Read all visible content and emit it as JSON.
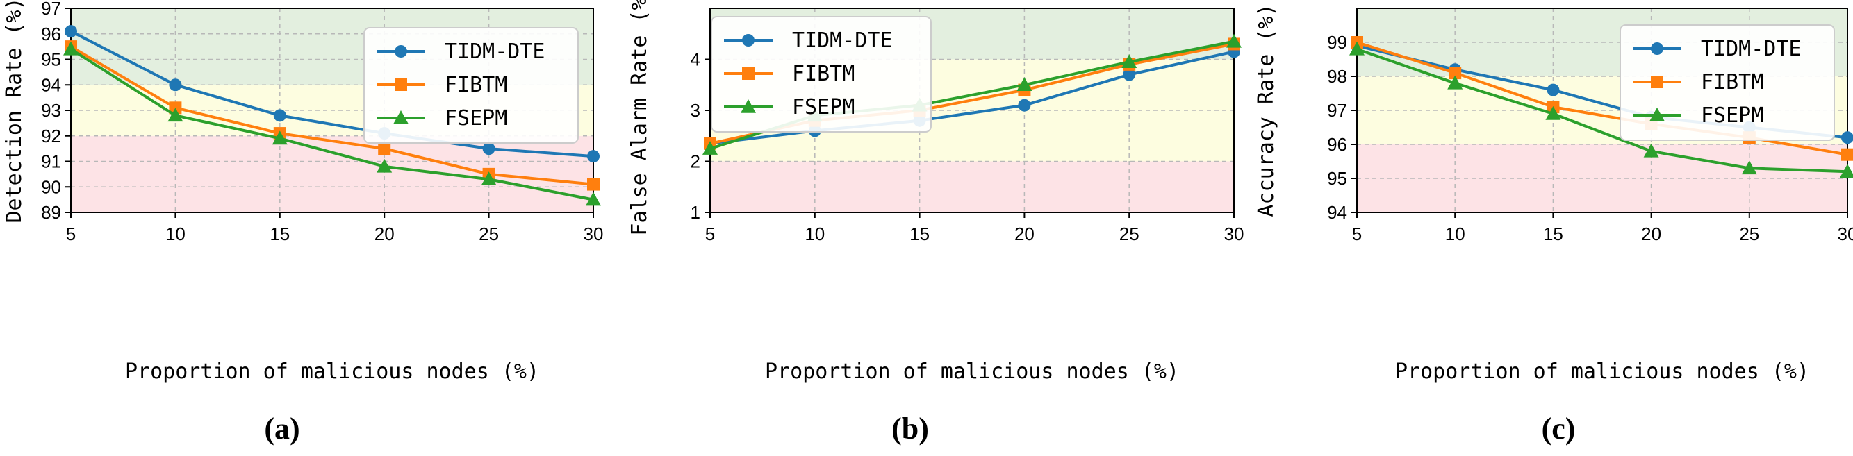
{
  "colors": {
    "band_green": "#e3efdf",
    "band_yellow": "#fdfde0",
    "band_red": "#fde3e6",
    "grid": "#b8b8b8"
  },
  "chart_data": [
    {
      "type": "line",
      "panel_label": "(a)",
      "xlabel": "Proportion of malicious nodes (%)",
      "ylabel": "Detection Rate (%)",
      "x": [
        5,
        10,
        15,
        20,
        25,
        30
      ],
      "xlim": [
        5,
        30
      ],
      "xticks": [
        "5",
        "10",
        "15",
        "20",
        "25",
        "30"
      ],
      "ylim": [
        89,
        97
      ],
      "yticks": [
        89,
        90,
        91,
        92,
        93,
        94,
        95,
        96,
        97
      ],
      "bands": [
        {
          "from": 89,
          "to": 92,
          "color": "band_red"
        },
        {
          "from": 92,
          "to": 94,
          "color": "band_yellow"
        },
        {
          "from": 94,
          "to": 97,
          "color": "band_green"
        }
      ],
      "legend_position": "top-right",
      "series": [
        {
          "name": "TIDM-DTE",
          "color": "#1f77b4",
          "marker": "circle",
          "values": [
            96.1,
            94.0,
            92.8,
            92.1,
            91.5,
            91.2
          ]
        },
        {
          "name": "FIBTM",
          "color": "#ff7f0e",
          "marker": "square",
          "values": [
            95.5,
            93.1,
            92.1,
            91.5,
            90.5,
            90.1
          ]
        },
        {
          "name": "FSEPM",
          "color": "#2ca02c",
          "marker": "triangle",
          "values": [
            95.4,
            92.8,
            91.9,
            90.8,
            90.3,
            89.5
          ]
        }
      ]
    },
    {
      "type": "line",
      "panel_label": "(b)",
      "xlabel": "Proportion of malicious nodes (%)",
      "ylabel": "False Alarm Rate (%)",
      "x": [
        5,
        10,
        15,
        20,
        25,
        30
      ],
      "xlim": [
        5,
        30
      ],
      "xticks": [
        "5",
        "10",
        "15",
        "20",
        "25",
        "30"
      ],
      "ylim": [
        1,
        5
      ],
      "yticks": [
        1,
        2,
        3,
        4
      ],
      "bands": [
        {
          "from": 1,
          "to": 2,
          "color": "band_red"
        },
        {
          "from": 2,
          "to": 4,
          "color": "band_yellow"
        },
        {
          "from": 4,
          "to": 5,
          "color": "band_green"
        }
      ],
      "legend_position": "top-left",
      "series": [
        {
          "name": "TIDM-DTE",
          "color": "#1f77b4",
          "marker": "circle",
          "values": [
            2.35,
            2.6,
            2.8,
            3.1,
            3.7,
            4.15
          ]
        },
        {
          "name": "FIBTM",
          "color": "#ff7f0e",
          "marker": "square",
          "values": [
            2.35,
            2.8,
            3.0,
            3.4,
            3.9,
            4.3
          ]
        },
        {
          "name": "FSEPM",
          "color": "#2ca02c",
          "marker": "triangle",
          "values": [
            2.25,
            2.9,
            3.1,
            3.5,
            3.95,
            4.35
          ]
        }
      ]
    },
    {
      "type": "line",
      "panel_label": "(c)",
      "xlabel": "Proportion of malicious nodes (%)",
      "ylabel": "Accuracy Rate (%)",
      "x": [
        5,
        10,
        15,
        20,
        25,
        30
      ],
      "xlim": [
        5,
        30
      ],
      "xticks": [
        "5",
        "10",
        "15",
        "20",
        "25",
        "30"
      ],
      "ylim": [
        94,
        100
      ],
      "yticks": [
        94,
        95,
        96,
        97,
        98,
        99
      ],
      "bands": [
        {
          "from": 94,
          "to": 96,
          "color": "band_red"
        },
        {
          "from": 96,
          "to": 98,
          "color": "band_yellow"
        },
        {
          "from": 98,
          "to": 100,
          "color": "band_green"
        }
      ],
      "legend_position": "top-right",
      "series": [
        {
          "name": "TIDM-DTE",
          "color": "#1f77b4",
          "marker": "circle",
          "values": [
            98.9,
            98.2,
            97.6,
            96.8,
            96.5,
            96.2
          ]
        },
        {
          "name": "FIBTM",
          "color": "#ff7f0e",
          "marker": "square",
          "values": [
            99.0,
            98.1,
            97.1,
            96.6,
            96.2,
            95.7
          ]
        },
        {
          "name": "FSEPM",
          "color": "#2ca02c",
          "marker": "triangle",
          "values": [
            98.8,
            97.8,
            96.9,
            95.8,
            95.3,
            95.2
          ]
        }
      ]
    }
  ]
}
